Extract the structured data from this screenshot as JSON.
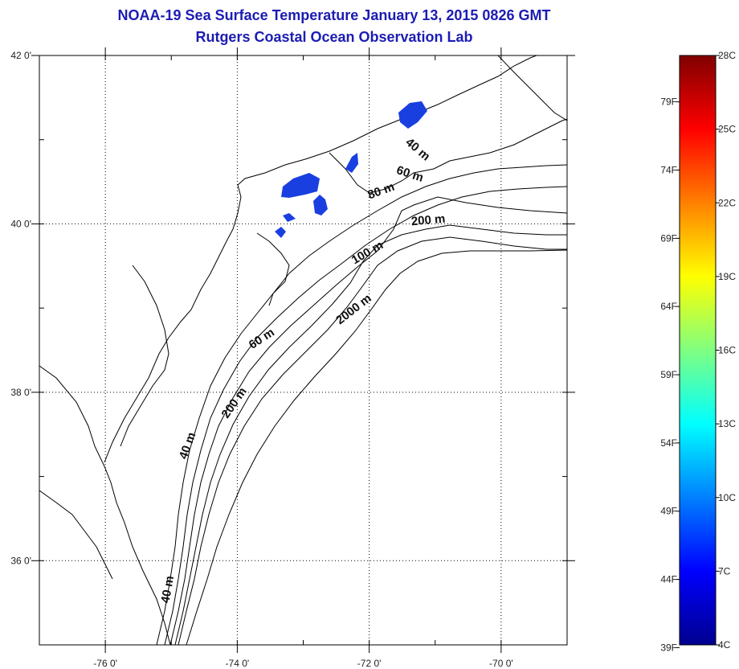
{
  "title": "NOAA-19 Sea Surface Temperature January 13, 2015 0826 GMT",
  "subtitle": "Rutgers Coastal Ocean Observation Lab",
  "map": {
    "lon_range": [
      -77,
      -69
    ],
    "lat_range": [
      35,
      42
    ],
    "x_ticks": [
      {
        "value": -76,
        "label": "-76 0'"
      },
      {
        "value": -74,
        "label": "-74 0'"
      },
      {
        "value": -72,
        "label": "-72 0'"
      },
      {
        "value": -70,
        "label": "-70 0'"
      }
    ],
    "y_ticks": [
      {
        "value": 42,
        "label": "42 0'"
      },
      {
        "value": 40,
        "label": "40 0'"
      },
      {
        "value": 38,
        "label": "38 0'"
      },
      {
        "value": 36,
        "label": "36 0'"
      }
    ],
    "depth_labels": [
      {
        "text": "40 m",
        "lon": -71.3,
        "lat": 40.85,
        "rotate": 40
      },
      {
        "text": "60 m",
        "lon": -71.4,
        "lat": 40.55,
        "rotate": 18
      },
      {
        "text": "80 m",
        "lon": -71.8,
        "lat": 40.35,
        "rotate": -20
      },
      {
        "text": "200 m",
        "lon": -71.1,
        "lat": 40.0,
        "rotate": -5
      },
      {
        "text": "100 m",
        "lon": -72.0,
        "lat": 39.62,
        "rotate": -30
      },
      {
        "text": "2000 m",
        "lon": -72.2,
        "lat": 38.95,
        "rotate": -38
      },
      {
        "text": "60 m",
        "lon": -73.6,
        "lat": 38.6,
        "rotate": -33
      },
      {
        "text": "200 m",
        "lon": -74.0,
        "lat": 37.85,
        "rotate": -55
      },
      {
        "text": "40 m",
        "lon": -74.7,
        "lat": 37.35,
        "rotate": -70
      },
      {
        "text": "40 m",
        "lon": -75.0,
        "lat": 35.65,
        "rotate": -80
      }
    ],
    "sst_color": "#1a3fe0"
  },
  "colorbar": {
    "celsius_labels": [
      "28C",
      "25C",
      "22C",
      "19C",
      "16C",
      "13C",
      "10C",
      "7C",
      "4C"
    ],
    "fahrenheit_labels": [
      "79F",
      "74F",
      "69F",
      "64F",
      "59F",
      "54F",
      "49F",
      "44F",
      "39F"
    ],
    "celsius_range": [
      4,
      28
    ],
    "colors": [
      "#00008f",
      "#0000ff",
      "#0080ff",
      "#00ffff",
      "#80ff80",
      "#ffff00",
      "#ff8000",
      "#ff0000",
      "#800000"
    ]
  }
}
